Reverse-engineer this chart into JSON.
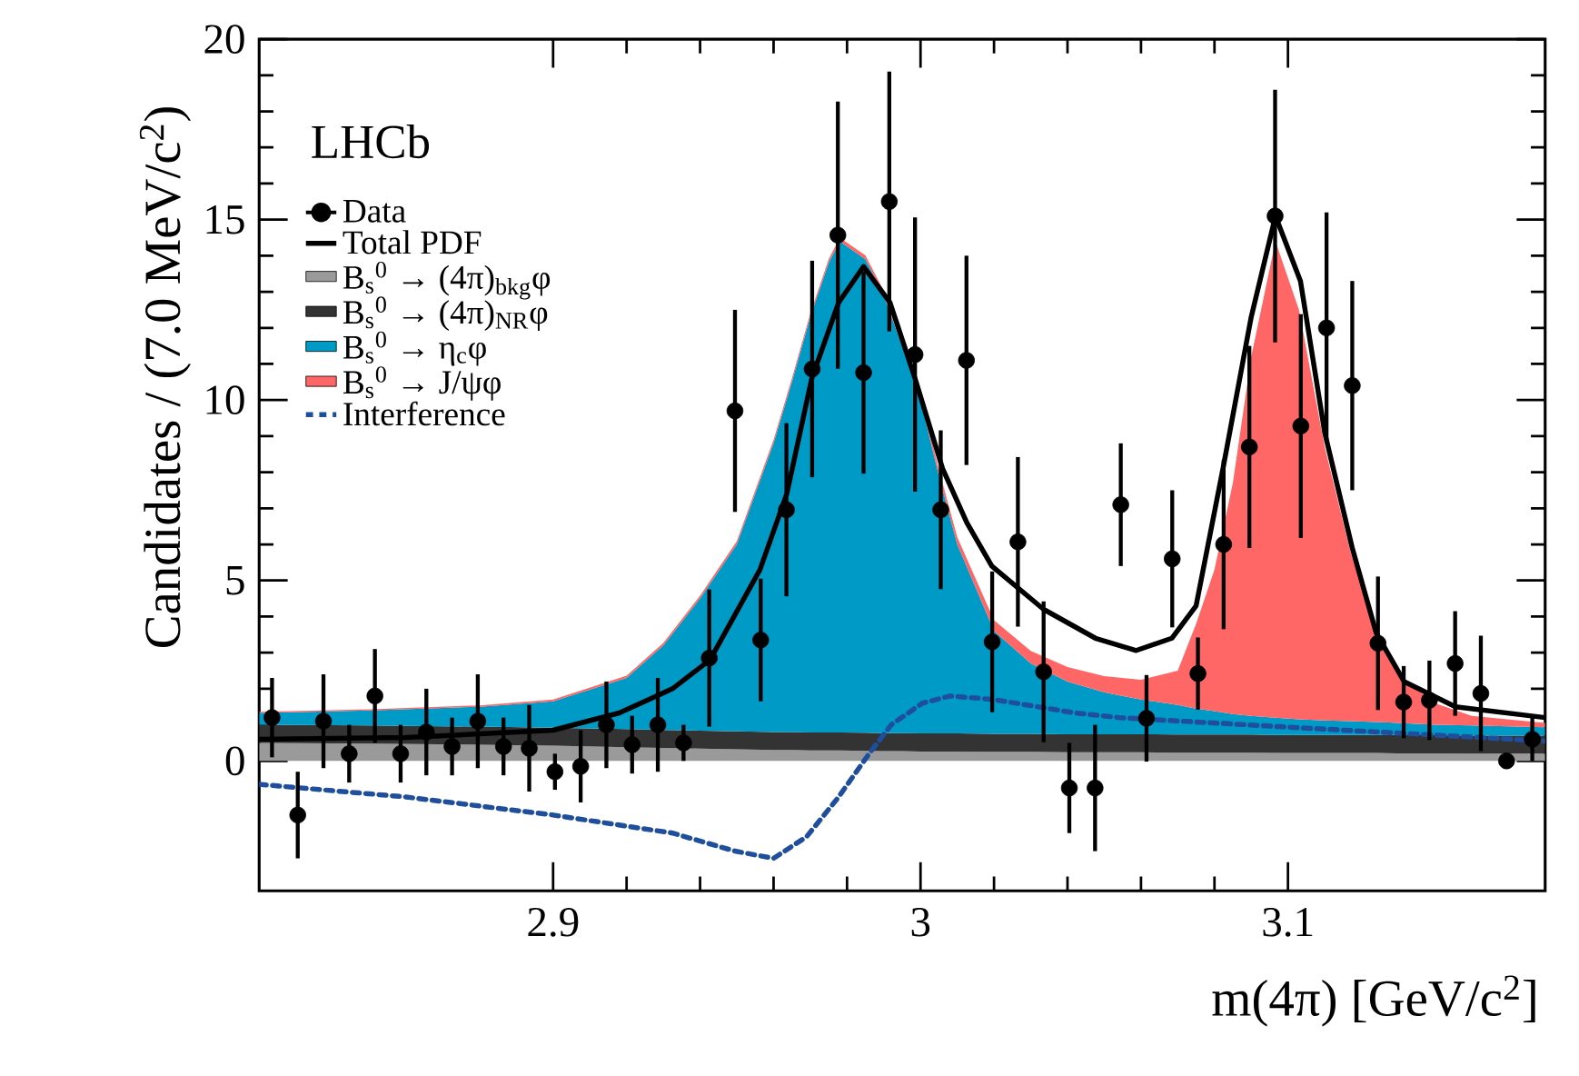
{
  "chart_data": {
    "type": "line",
    "stacked": true,
    "xlabel": "m(4π) [GeV/c$^{2}$]",
    "ylabel": "Candidates / (7.0 MeV/c$^{2}$)",
    "annotations": [
      "LHCb"
    ],
    "xlim": [
      2.82,
      3.17
    ],
    "ylim": [
      -3.6,
      20
    ],
    "xticks": [
      2.9,
      3,
      3.1
    ],
    "yticks": [
      0,
      5,
      10,
      15,
      20
    ],
    "legend": "top left",
    "series": [
      {
        "name": "Data",
        "type": "scatter",
        "color": "#000000",
        "marker": "circle",
        "x": [
          2.8235,
          2.8305,
          2.8375,
          2.8445,
          2.8515,
          2.8585,
          2.8655,
          2.8725,
          2.8795,
          2.8865,
          2.8935,
          2.9005,
          2.9075,
          2.9145,
          2.9215,
          2.9285,
          2.9355,
          2.9425,
          2.9495,
          2.9565,
          2.9635,
          2.9705,
          2.9775,
          2.9845,
          2.9915,
          2.9985,
          3.0055,
          3.0125,
          3.0195,
          3.0265,
          3.0335,
          3.0405,
          3.0475,
          3.0545,
          3.0615,
          3.0685,
          3.0755,
          3.0825,
          3.0895,
          3.0965,
          3.1035,
          3.1105,
          3.1175,
          3.1245,
          3.1315,
          3.1385,
          3.1455,
          3.1525,
          3.1595,
          3.1665
        ],
        "values": [
          1.2,
          -1.5,
          1.1,
          0.2,
          1.8,
          0.2,
          0.8,
          0.4,
          1.1,
          0.4,
          0.35,
          -0.3,
          -0.15,
          1.0,
          0.45,
          1.0,
          0.5,
          2.85,
          9.7,
          3.35,
          6.96,
          10.86,
          14.57,
          10.76,
          15.5,
          11.26,
          6.96,
          11.1,
          3.3,
          6.07,
          2.47,
          -0.75,
          -0.75,
          7.1,
          1.18,
          5.6,
          2.42,
          6.0,
          8.7,
          15.1,
          9.28,
          12.0,
          10.4,
          3.26,
          1.63,
          1.68,
          2.7,
          1.87,
          0.0,
          0.6
        ],
        "errors": [
          1.1,
          1.2,
          1.3,
          0.8,
          1.3,
          0.8,
          1.2,
          0.8,
          1.3,
          0.8,
          1.2,
          0.5,
          1.0,
          1.2,
          0.8,
          1.3,
          0.5,
          1.9,
          2.8,
          1.7,
          2.4,
          3.0,
          3.7,
          2.8,
          3.6,
          3.8,
          2.2,
          2.9,
          1.95,
          2.35,
          1.95,
          1.25,
          1.75,
          1.7,
          1.2,
          1.9,
          1.0,
          2.35,
          2.8,
          3.5,
          3.1,
          3.2,
          2.9,
          1.85,
          1.0,
          1.1,
          1.45,
          1.6,
          0.2,
          0.6
        ]
      },
      {
        "name": "Total PDF",
        "color": "#000000",
        "line_style": "solid",
        "x": [
          2.82,
          2.86,
          2.9,
          2.918,
          2.9325,
          2.9427,
          2.9563,
          2.9636,
          2.9704,
          2.9777,
          2.9845,
          2.9917,
          2.9985,
          3.006,
          3.0126,
          3.0194,
          3.0335,
          3.0476,
          3.0587,
          3.0684,
          3.075,
          3.0825,
          3.09,
          3.0966,
          3.1034,
          3.11,
          3.1175,
          3.124,
          3.1316,
          3.1456,
          3.17
        ],
        "values": [
          0.6,
          0.65,
          0.85,
          1.33,
          2.0,
          2.8,
          5.3,
          7.4,
          10.6,
          12.7,
          13.7,
          12.7,
          10.6,
          8.1,
          6.6,
          5.4,
          4.2,
          3.4,
          3.06,
          3.4,
          4.3,
          8.2,
          12.3,
          15.1,
          13.3,
          9.1,
          5.9,
          3.55,
          2.2,
          1.5,
          1.2
        ]
      },
      {
        "name": "B$_{s}$$^{0}$ → (4π)$_{bkg}$φ",
        "type": "area",
        "color": "#9a9a9a",
        "x": [
          2.82,
          2.85,
          2.88,
          2.9,
          2.92,
          2.93,
          2.94,
          2.95,
          2.96,
          2.965,
          2.97,
          2.975,
          2.978,
          2.985,
          2.99,
          2.995,
          3.0,
          3.005,
          3.01,
          3.02,
          3.03,
          3.04,
          3.05,
          3.06,
          3.07,
          3.075,
          3.08,
          3.085,
          3.09,
          3.0966,
          3.103,
          3.11,
          3.117,
          3.124,
          3.13,
          3.14,
          3.15,
          3.17
        ],
        "values": [
          0.5,
          0.48,
          0.45,
          0.42,
          0.38,
          0.36,
          0.34,
          0.32,
          0.3,
          0.3,
          0.29,
          0.29,
          0.29,
          0.28,
          0.27,
          0.27,
          0.26,
          0.26,
          0.26,
          0.25,
          0.25,
          0.24,
          0.24,
          0.24,
          0.23,
          0.23,
          0.23,
          0.23,
          0.23,
          0.22,
          0.22,
          0.22,
          0.22,
          0.22,
          0.21,
          0.21,
          0.2,
          0.2
        ]
      },
      {
        "name": "B$_{s}$$^{0}$ → (4π)$_{NR}$φ",
        "type": "area",
        "color": "#333333",
        "x": [
          2.82,
          2.85,
          2.88,
          2.9,
          2.92,
          2.93,
          2.94,
          2.95,
          2.96,
          2.965,
          2.97,
          2.975,
          2.978,
          2.985,
          2.99,
          2.995,
          3.0,
          3.005,
          3.01,
          3.02,
          3.03,
          3.04,
          3.05,
          3.06,
          3.07,
          3.075,
          3.08,
          3.085,
          3.09,
          3.0966,
          3.103,
          3.11,
          3.117,
          3.124,
          3.13,
          3.14,
          3.15,
          3.17
        ],
        "values": [
          0.5,
          0.5,
          0.5,
          0.5,
          0.5,
          0.5,
          0.5,
          0.5,
          0.5,
          0.5,
          0.5,
          0.5,
          0.5,
          0.5,
          0.5,
          0.5,
          0.5,
          0.5,
          0.5,
          0.5,
          0.5,
          0.5,
          0.5,
          0.5,
          0.5,
          0.5,
          0.5,
          0.5,
          0.5,
          0.5,
          0.5,
          0.5,
          0.5,
          0.5,
          0.5,
          0.5,
          0.5,
          0.5
        ]
      },
      {
        "name": "B$_{s}$$^{0}$ → η$_{c}$φ",
        "type": "area",
        "color": "#009ac7",
        "x": [
          2.82,
          2.85,
          2.88,
          2.9,
          2.92,
          2.93,
          2.94,
          2.95,
          2.96,
          2.965,
          2.97,
          2.975,
          2.978,
          2.985,
          2.99,
          2.995,
          3.0,
          3.005,
          3.01,
          3.02,
          3.03,
          3.04,
          3.05,
          3.06,
          3.07,
          3.075,
          3.08,
          3.085,
          3.09,
          3.0966,
          3.103,
          3.11,
          3.117,
          3.124,
          3.13,
          3.14,
          3.15,
          3.17
        ],
        "values": [
          0.33,
          0.42,
          0.55,
          0.73,
          1.42,
          2.34,
          3.66,
          5.18,
          8.0,
          9.7,
          11.51,
          13.01,
          13.61,
          13.12,
          12.13,
          10.73,
          9.24,
          7.14,
          5.24,
          2.85,
          1.95,
          1.46,
          1.16,
          0.96,
          0.82,
          0.72,
          0.65,
          0.57,
          0.52,
          0.48,
          0.43,
          0.4,
          0.38,
          0.36,
          0.34,
          0.29,
          0.28,
          0.23
        ]
      },
      {
        "name": "B$_{s}$$^{0}$ → J/ψφ",
        "type": "area",
        "color": "#ff6666",
        "x": [
          2.82,
          2.85,
          2.88,
          2.9,
          2.92,
          2.93,
          2.94,
          2.95,
          2.96,
          2.965,
          2.97,
          2.975,
          2.978,
          2.985,
          2.99,
          2.995,
          3.0,
          3.005,
          3.01,
          3.02,
          3.03,
          3.04,
          3.05,
          3.06,
          3.07,
          3.075,
          3.08,
          3.085,
          3.09,
          3.0966,
          3.103,
          3.11,
          3.117,
          3.124,
          3.13,
          3.14,
          3.15,
          3.17
        ],
        "values": [
          0.03,
          0.03,
          0.04,
          0.05,
          0.06,
          0.07,
          0.08,
          0.09,
          0.1,
          0.1,
          0.1,
          0.1,
          0.1,
          0.11,
          0.12,
          0.13,
          0.15,
          0.17,
          0.2,
          0.3,
          0.35,
          0.4,
          0.45,
          0.55,
          0.95,
          2.35,
          3.92,
          6.4,
          9.95,
          13.2,
          11.35,
          7.58,
          4.7,
          2.52,
          1.35,
          0.6,
          0.27,
          0.12
        ]
      },
      {
        "name": "Interference",
        "type": "line",
        "color": "#1f4e9c",
        "line_style": "dashed",
        "x": [
          2.82,
          2.86,
          2.9,
          2.9325,
          2.9495,
          2.96,
          2.969,
          2.9777,
          2.986,
          2.992,
          3.0005,
          3.008,
          3.02,
          3.042,
          3.054,
          3.0976,
          3.17
        ],
        "values": [
          -0.65,
          -1.0,
          -1.5,
          -2.0,
          -2.5,
          -2.7,
          -2.1,
          -1.0,
          0.2,
          1.0,
          1.6,
          1.8,
          1.7,
          1.33,
          1.2,
          0.95,
          0.55
        ]
      }
    ]
  }
}
